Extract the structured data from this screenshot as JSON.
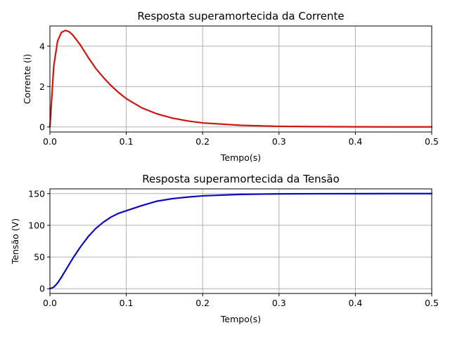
{
  "chart_data": [
    {
      "type": "line",
      "title": "Resposta superamortecida da Corrente",
      "xlabel": "Tempo(s)",
      "ylabel": "Corrente (i)",
      "xlim": [
        0,
        0.5
      ],
      "ylim": [
        -0.25,
        5.0
      ],
      "xticks": [
        0,
        0.1,
        0.2,
        0.3,
        0.4,
        0.5
      ],
      "xtick_labels": [
        "0.0",
        "0.1",
        "0.2",
        "0.3",
        "0.4",
        "0.5"
      ],
      "yticks": [
        0,
        2,
        4
      ],
      "ytick_labels": [
        "0",
        "2",
        "4"
      ],
      "grid": true,
      "series": [
        {
          "color": "#d0150f",
          "x": [
            0,
            0.005,
            0.01,
            0.015,
            0.02,
            0.025,
            0.03,
            0.04,
            0.05,
            0.06,
            0.07,
            0.08,
            0.09,
            0.1,
            0.12,
            0.14,
            0.16,
            0.18,
            0.2,
            0.25,
            0.3,
            0.35,
            0.4,
            0.45,
            0.5
          ],
          "y": [
            0,
            3.0,
            4.25,
            4.68,
            4.78,
            4.72,
            4.55,
            4.05,
            3.45,
            2.9,
            2.45,
            2.05,
            1.7,
            1.4,
            0.95,
            0.65,
            0.44,
            0.3,
            0.2,
            0.08,
            0.03,
            0.015,
            0.006,
            0.003,
            0.001
          ]
        }
      ]
    },
    {
      "type": "line",
      "title": "Resposta superamortecida da Tensão",
      "xlabel": "Tempo(s)",
      "ylabel": "Tensão (V)",
      "xlim": [
        0,
        0.5
      ],
      "ylim": [
        -7.5,
        157.5
      ],
      "xticks": [
        0,
        0.1,
        0.2,
        0.3,
        0.4,
        0.5
      ],
      "xtick_labels": [
        "0.0",
        "0.1",
        "0.2",
        "0.3",
        "0.4",
        "0.5"
      ],
      "yticks": [
        0,
        50,
        100,
        150
      ],
      "ytick_labels": [
        "0",
        "50",
        "100",
        "150"
      ],
      "grid": true,
      "series": [
        {
          "color": "#0a0ac0",
          "x": [
            0,
            0.005,
            0.01,
            0.015,
            0.02,
            0.025,
            0.03,
            0.04,
            0.05,
            0.06,
            0.07,
            0.08,
            0.09,
            0.1,
            0.12,
            0.14,
            0.16,
            0.18,
            0.2,
            0.25,
            0.3,
            0.35,
            0.4,
            0.45,
            0.5
          ],
          "y": [
            0,
            2.5,
            9,
            18,
            28,
            38,
            48,
            66,
            82,
            95,
            105,
            113,
            119,
            123,
            131,
            138,
            142,
            144.5,
            146.5,
            148.8,
            149.6,
            149.8,
            149.9,
            150,
            150
          ]
        }
      ]
    }
  ]
}
